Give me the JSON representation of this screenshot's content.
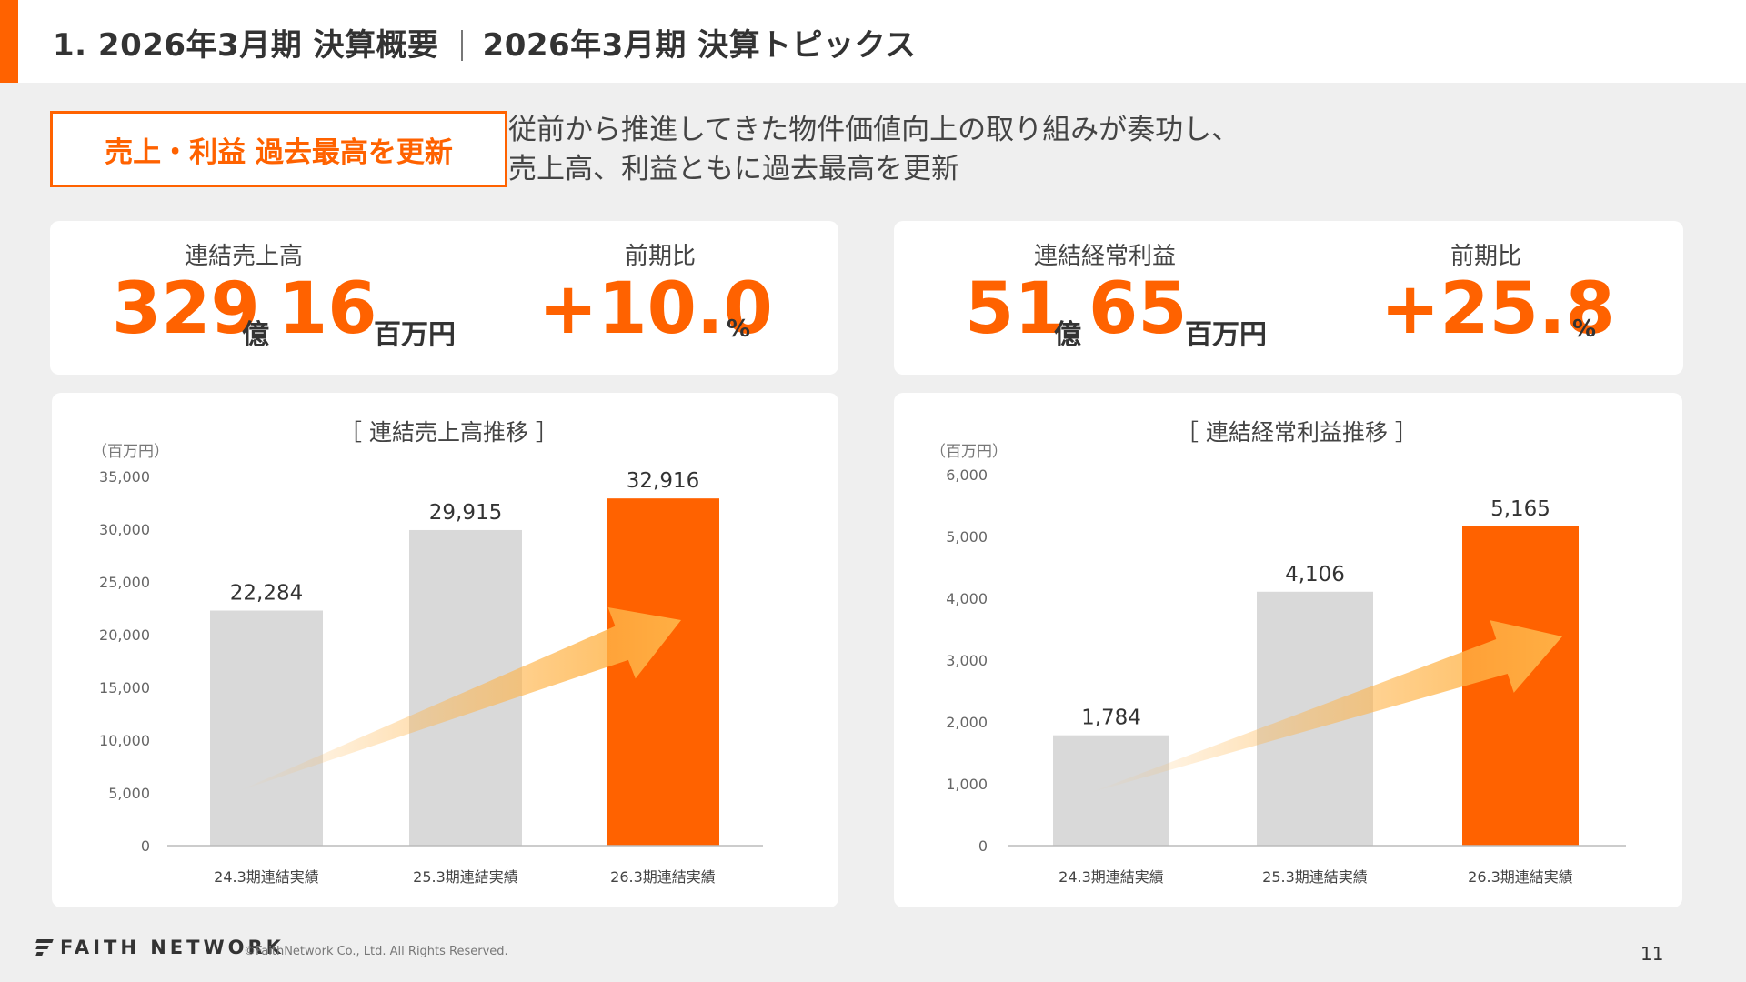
{
  "header": {
    "section": "1. 2026年3月期 決算概要",
    "topic": "2026年3月期 決算トピックス"
  },
  "headline": {
    "badge": "売上・利益 過去最高を更新",
    "lines": [
      "従前から推進してきた物件価値向上の取り組みが奏功し、",
      "売上高、利益ともに過去最高を更新"
    ]
  },
  "kpis": {
    "sales": {
      "label": "連結売上高",
      "oku_value": "329",
      "oku_unit": "億",
      "mil_value": "16",
      "mil_unit": "百万円",
      "yoy_label": "前期比",
      "yoy_value": "+10.0",
      "yoy_unit": "%"
    },
    "ordinary": {
      "label": "連結経常利益",
      "oku_value": "51",
      "oku_unit": "億",
      "mil_value": "65",
      "mil_unit": "百万円",
      "yoy_label": "前期比",
      "yoy_value": "+25.8",
      "yoy_unit": "%"
    }
  },
  "colors": {
    "accent": "#ff6200",
    "bar_past": "#d9d9d9",
    "arrow": "#ffb347"
  },
  "chart_data": [
    {
      "type": "bar",
      "title": "［ 連結売上高推移 ］",
      "ylabel": "（百万円）",
      "categories": [
        "24.3期連結実績",
        "25.3期連結実績",
        "26.3期連結実績"
      ],
      "values": [
        22284,
        29915,
        32916
      ],
      "value_labels": [
        "22,284",
        "29,915",
        "32,916"
      ],
      "ylim": [
        0,
        35000
      ],
      "yticks": [
        0,
        5000,
        10000,
        15000,
        20000,
        25000,
        30000,
        35000
      ],
      "ytick_labels": [
        "0",
        "5,000",
        "10,000",
        "15,000",
        "20,000",
        "25,000",
        "30,000",
        "35,000"
      ],
      "highlight_last": true,
      "grid": false
    },
    {
      "type": "bar",
      "title": "［ 連結経常利益推移 ］",
      "ylabel": "（百万円）",
      "categories": [
        "24.3期連結実績",
        "25.3期連結実績",
        "26.3期連結実績"
      ],
      "values": [
        1784,
        4106,
        5165
      ],
      "value_labels": [
        "1,784",
        "4,106",
        "5,165"
      ],
      "ylim": [
        0,
        6000
      ],
      "yticks": [
        0,
        1000,
        2000,
        3000,
        4000,
        5000,
        6000
      ],
      "ytick_labels": [
        "0",
        "1,000",
        "2,000",
        "3,000",
        "4,000",
        "5,000",
        "6,000"
      ],
      "highlight_last": true,
      "grid": false
    }
  ],
  "footer": {
    "logo": "FAITH NETWORK",
    "copyright": "©FaithNetwork Co., Ltd. All Rights Reserved.",
    "page": "11"
  }
}
